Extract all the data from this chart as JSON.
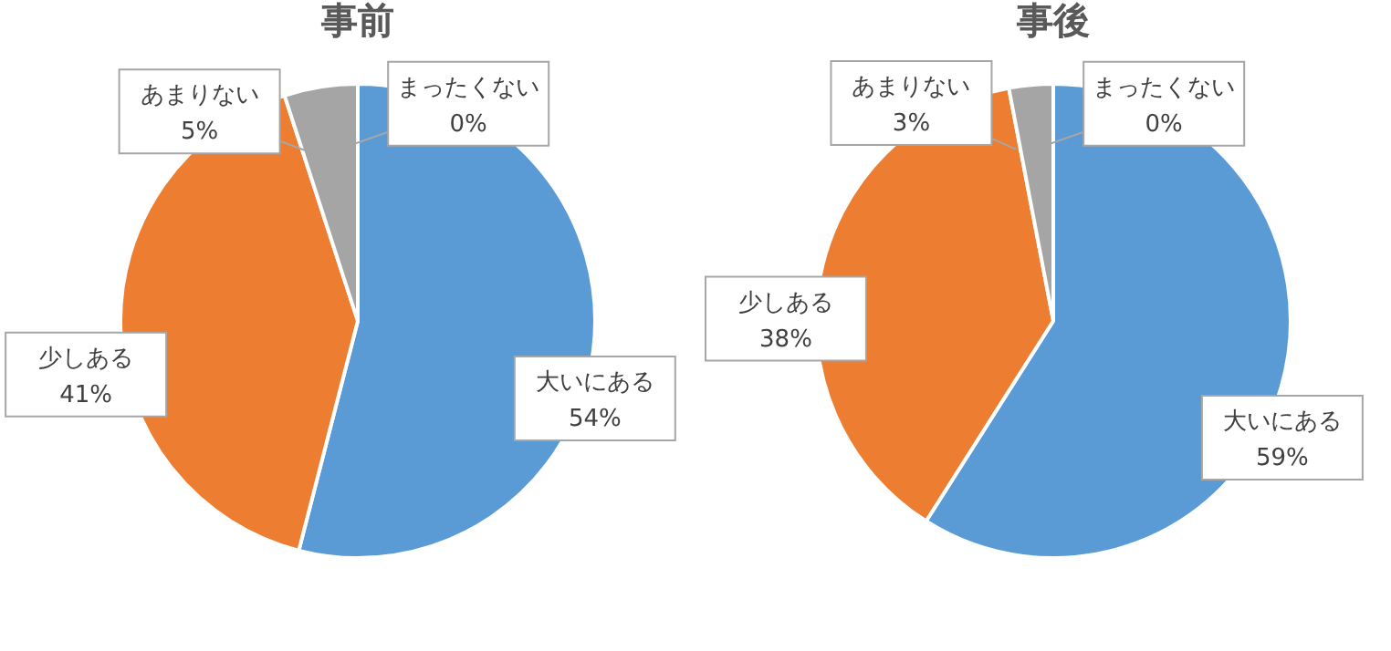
{
  "chart_data": [
    {
      "type": "pie",
      "title": "事前",
      "categories": [
        "大いにある",
        "少しある",
        "あまりない",
        "まったくない"
      ],
      "values": [
        54,
        41,
        5,
        0
      ],
      "value_labels": [
        "54%",
        "41%",
        "5%",
        "0%"
      ],
      "colors": [
        "#5b9bd5",
        "#ed7d31",
        "#a5a5a5",
        "#ffc000"
      ],
      "legend": false
    },
    {
      "type": "pie",
      "title": "事後",
      "categories": [
        "大いにある",
        "少しある",
        "あまりない",
        "まったくない"
      ],
      "values": [
        59,
        38,
        3,
        0
      ],
      "value_labels": [
        "59%",
        "38%",
        "3%",
        "0%"
      ],
      "colors": [
        "#5b9bd5",
        "#ed7d31",
        "#a5a5a5",
        "#ffc000"
      ],
      "legend": false
    }
  ]
}
